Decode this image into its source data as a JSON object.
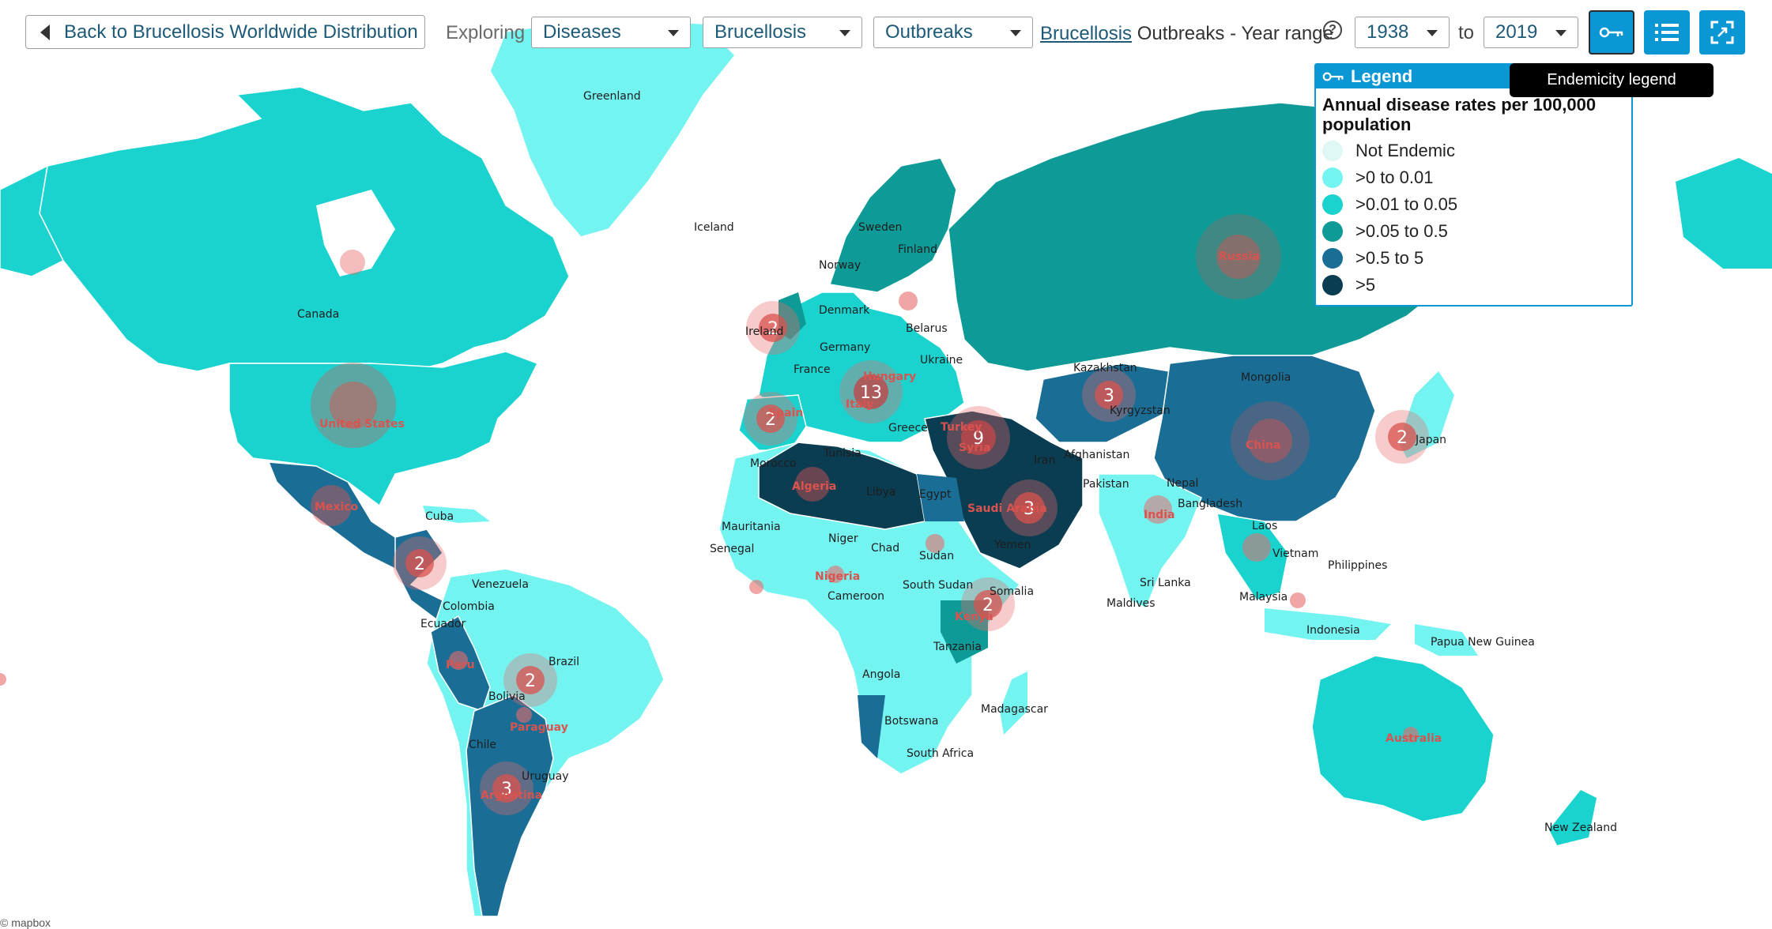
{
  "toolbar": {
    "back_label": "Back to Brucellosis Worldwide Distribution",
    "exploring_label": "Exploring",
    "category_select": "Diseases",
    "disease_select": "Brucellosis",
    "type_select": "Outbreaks",
    "title_link": "Brucellosis",
    "title_rest": " Outbreaks - Year range",
    "year_from": "1938",
    "to_label": "to",
    "year_to": "2019"
  },
  "tooltip": {
    "text": "Endemicity legend"
  },
  "legend": {
    "title": "Legend",
    "subtitle": "Annual disease rates per 100,000 population",
    "items": [
      {
        "label": "Not Endemic",
        "color": "#dff7f5"
      },
      {
        "label": ">0 to 0.01",
        "color": "#74f4f1"
      },
      {
        "label": ">0.01 to 0.05",
        "color": "#1ad3cf"
      },
      {
        "label": ">0.05 to 0.5",
        "color": "#0e9a96"
      },
      {
        "label": ">0.5 to 5",
        "color": "#1a6e96"
      },
      {
        "label": ">5",
        "color": "#0b3d52"
      }
    ]
  },
  "map": {
    "ocean_color": "#ffffff",
    "labels": [
      {
        "name": "Greenland",
        "red": false
      },
      {
        "name": "Iceland",
        "red": false
      },
      {
        "name": "Canada",
        "red": false
      },
      {
        "name": "United States",
        "red": true
      },
      {
        "name": "Mexico",
        "red": true
      },
      {
        "name": "Cuba",
        "red": false
      },
      {
        "name": "Venezuela",
        "red": false
      },
      {
        "name": "Colombia",
        "red": false
      },
      {
        "name": "Ecuador",
        "red": false
      },
      {
        "name": "Peru",
        "red": true
      },
      {
        "name": "Brazil",
        "red": false
      },
      {
        "name": "Bolivia",
        "red": false
      },
      {
        "name": "Paraguay",
        "red": true
      },
      {
        "name": "Chile",
        "red": false
      },
      {
        "name": "Uruguay",
        "red": false
      },
      {
        "name": "Argentina",
        "red": true
      },
      {
        "name": "Sweden",
        "red": false
      },
      {
        "name": "Finland",
        "red": false
      },
      {
        "name": "Norway",
        "red": false
      },
      {
        "name": "Denmark",
        "red": false
      },
      {
        "name": "Ireland",
        "red": false
      },
      {
        "name": "Belarus",
        "red": false
      },
      {
        "name": "Germany",
        "red": false
      },
      {
        "name": "Ukraine",
        "red": false
      },
      {
        "name": "France",
        "red": false
      },
      {
        "name": "Hungary",
        "red": true
      },
      {
        "name": "Italy",
        "red": true
      },
      {
        "name": "Spain",
        "red": true
      },
      {
        "name": "Greece",
        "red": false
      },
      {
        "name": "Turkey",
        "red": true
      },
      {
        "name": "Syria",
        "red": true
      },
      {
        "name": "Morocco",
        "red": false
      },
      {
        "name": "Tunisia",
        "red": false
      },
      {
        "name": "Algeria",
        "red": true
      },
      {
        "name": "Libya",
        "red": false
      },
      {
        "name": "Egypt",
        "red": false
      },
      {
        "name": "Iran",
        "red": false
      },
      {
        "name": "Saudi Arabia",
        "red": true
      },
      {
        "name": "Yemen",
        "red": false
      },
      {
        "name": "Mauritania",
        "red": false
      },
      {
        "name": "Senegal",
        "red": false
      },
      {
        "name": "Niger",
        "red": false
      },
      {
        "name": "Chad",
        "red": false
      },
      {
        "name": "Sudan",
        "red": false
      },
      {
        "name": "Nigeria",
        "red": true
      },
      {
        "name": "Cameroon",
        "red": false
      },
      {
        "name": "South Sudan",
        "red": false
      },
      {
        "name": "Somalia",
        "red": false
      },
      {
        "name": "Kenya",
        "red": true
      },
      {
        "name": "Tanzania",
        "red": false
      },
      {
        "name": "Angola",
        "red": false
      },
      {
        "name": "Botswana",
        "red": false
      },
      {
        "name": "South Africa",
        "red": false
      },
      {
        "name": "Madagascar",
        "red": false
      },
      {
        "name": "Russia",
        "red": true
      },
      {
        "name": "Kazakhstan",
        "red": false
      },
      {
        "name": "Kyrgyzstan",
        "red": false
      },
      {
        "name": "Mongolia",
        "red": false
      },
      {
        "name": "China",
        "red": true
      },
      {
        "name": "Japan",
        "red": false
      },
      {
        "name": "Afghanistan",
        "red": false
      },
      {
        "name": "Pakistan",
        "red": false
      },
      {
        "name": "Nepal",
        "red": false
      },
      {
        "name": "India",
        "red": true
      },
      {
        "name": "Bangladesh",
        "red": false
      },
      {
        "name": "Laos",
        "red": false
      },
      {
        "name": "Vietnam",
        "red": false
      },
      {
        "name": "Philippines",
        "red": false
      },
      {
        "name": "Sri Lanka",
        "red": false
      },
      {
        "name": "Maldives",
        "red": false
      },
      {
        "name": "Malaysia",
        "red": false
      },
      {
        "name": "Indonesia",
        "red": false
      },
      {
        "name": "Papua New Guinea",
        "red": false
      },
      {
        "name": "Australia",
        "red": true
      },
      {
        "name": "New Zealand",
        "red": false
      }
    ],
    "clusters": [
      {
        "count": "2"
      },
      {
        "count": "2"
      },
      {
        "count": "13"
      },
      {
        "count": "9"
      },
      {
        "count": "3"
      },
      {
        "count": "3"
      },
      {
        "count": "2"
      },
      {
        "count": "2"
      },
      {
        "count": "2"
      },
      {
        "count": "2"
      },
      {
        "count": "3"
      }
    ],
    "attribution": "© mapbox"
  }
}
